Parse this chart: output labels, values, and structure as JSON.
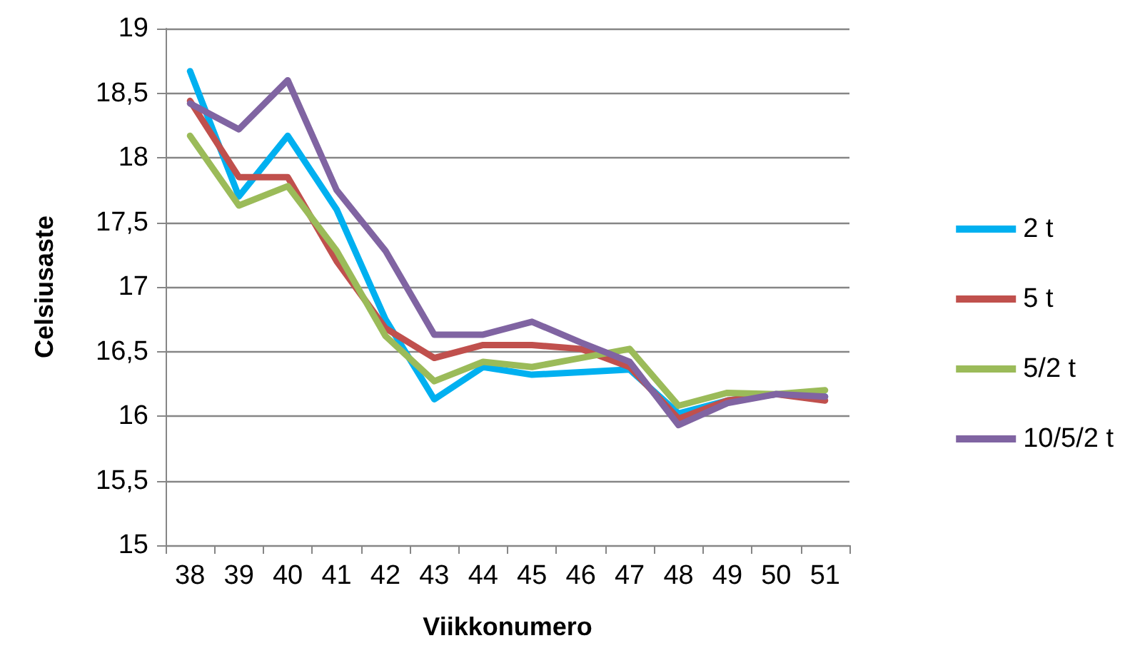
{
  "chart_data": {
    "type": "line",
    "xlabel": "Viikkonumero",
    "ylabel": "Celsiusaste",
    "categories": [
      "38",
      "39",
      "40",
      "41",
      "42",
      "43",
      "44",
      "45",
      "46",
      "47",
      "48",
      "49",
      "50",
      "51"
    ],
    "series": [
      {
        "name": "2 t",
        "color": "#00b0f0",
        "values": [
          18.67,
          17.7,
          18.17,
          17.6,
          16.75,
          16.13,
          16.38,
          16.32,
          16.34,
          16.36,
          16.02,
          16.12,
          16.17,
          16.15
        ]
      },
      {
        "name": "5 t",
        "color": "#c0504d",
        "values": [
          18.44,
          17.85,
          17.85,
          17.2,
          16.68,
          16.45,
          16.55,
          16.55,
          16.52,
          16.38,
          15.98,
          16.12,
          16.17,
          16.12
        ]
      },
      {
        "name": "5/2 t",
        "color": "#9bbb59",
        "values": [
          18.17,
          17.63,
          17.78,
          17.28,
          16.62,
          16.27,
          16.42,
          16.38,
          16.45,
          16.52,
          16.08,
          16.18,
          16.17,
          16.2
        ]
      },
      {
        "name": "10/5/2 t",
        "color": "#8064a2",
        "values": [
          18.42,
          18.22,
          18.6,
          17.75,
          17.28,
          16.63,
          16.63,
          16.73,
          16.57,
          16.42,
          15.93,
          16.1,
          16.17,
          16.15
        ]
      }
    ],
    "ylim": [
      15,
      19
    ],
    "yticks": [
      15,
      {
        "value": 15.5,
        "label": "15,5"
      },
      16,
      {
        "value": 16.5,
        "label": "16,5"
      },
      17,
      {
        "value": 17.5,
        "label": "17,5"
      },
      18,
      {
        "value": 18.5,
        "label": "18,5"
      },
      19
    ],
    "grid": "y",
    "legend": "right",
    "marker": "none",
    "line_style": "solid"
  }
}
